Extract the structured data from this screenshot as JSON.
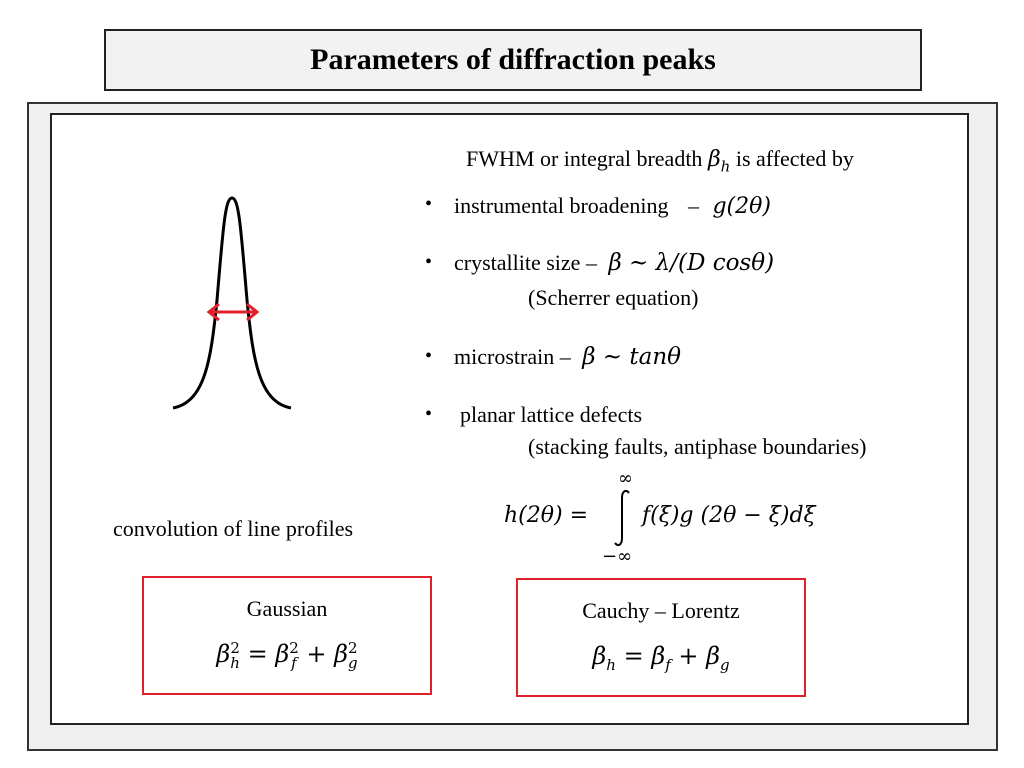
{
  "title": "Parameters of diffraction peaks",
  "intro": {
    "pre": "FWHM or integral breadth ",
    "beta": "β",
    "sub": "h",
    "post": " is affected by"
  },
  "bullets": [
    {
      "text": "instrumental broadening",
      "dash": "–",
      "math": "g(2θ)"
    },
    {
      "text": "crystallite size –",
      "math": "β ~ λ/(D cosθ)",
      "note": "(Scherrer equation)"
    },
    {
      "text": "microstrain –",
      "math": "β ~ tanθ"
    },
    {
      "text": "planar lattice defects",
      "note": "(stacking faults, antiphase boundaries)"
    }
  ],
  "bullet_glyph": "•",
  "convolution_label": "convolution of line profiles",
  "integral": {
    "upper": "∞",
    "lower": "−∞",
    "lhs": "h(2θ) =",
    "rhs": "f(ξ)g (2θ − ξ)dξ"
  },
  "boxes": {
    "gaussian": {
      "title": "Gaussian",
      "formula": "β h 2 = β f 2 + β g 2"
    },
    "cauchy": {
      "title": "Cauchy – Lorentz",
      "formula": "β h = β f + β g"
    }
  },
  "colors": {
    "arrow": "#e0202a",
    "box_border": "#e0202a",
    "peak": "#000000"
  }
}
